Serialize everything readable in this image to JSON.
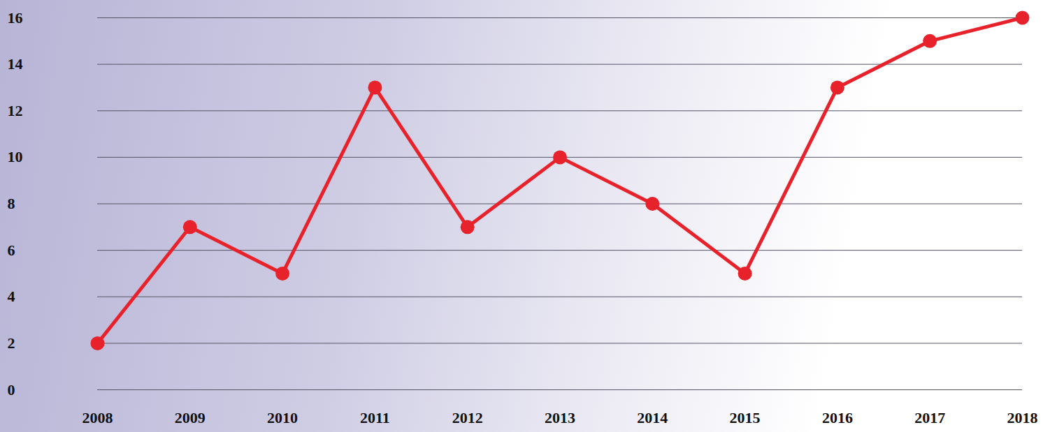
{
  "chart_data": {
    "type": "line",
    "x": [
      2008,
      2009,
      2010,
      2011,
      2012,
      2013,
      2014,
      2015,
      2016,
      2017,
      2018
    ],
    "values": [
      2,
      7,
      5,
      13,
      7,
      10,
      8,
      5,
      13,
      15,
      16
    ],
    "color": "#e8222b",
    "marker": "circle",
    "xlim": [
      2008,
      2018
    ],
    "xticks": [
      2008,
      2009,
      2010,
      2011,
      2012,
      2013,
      2014,
      2015,
      2016,
      2017,
      2018
    ],
    "ylim": [
      0,
      16
    ],
    "yticks": [
      0,
      2,
      4,
      6,
      8,
      10,
      12,
      14,
      16
    ],
    "grid": true
  }
}
